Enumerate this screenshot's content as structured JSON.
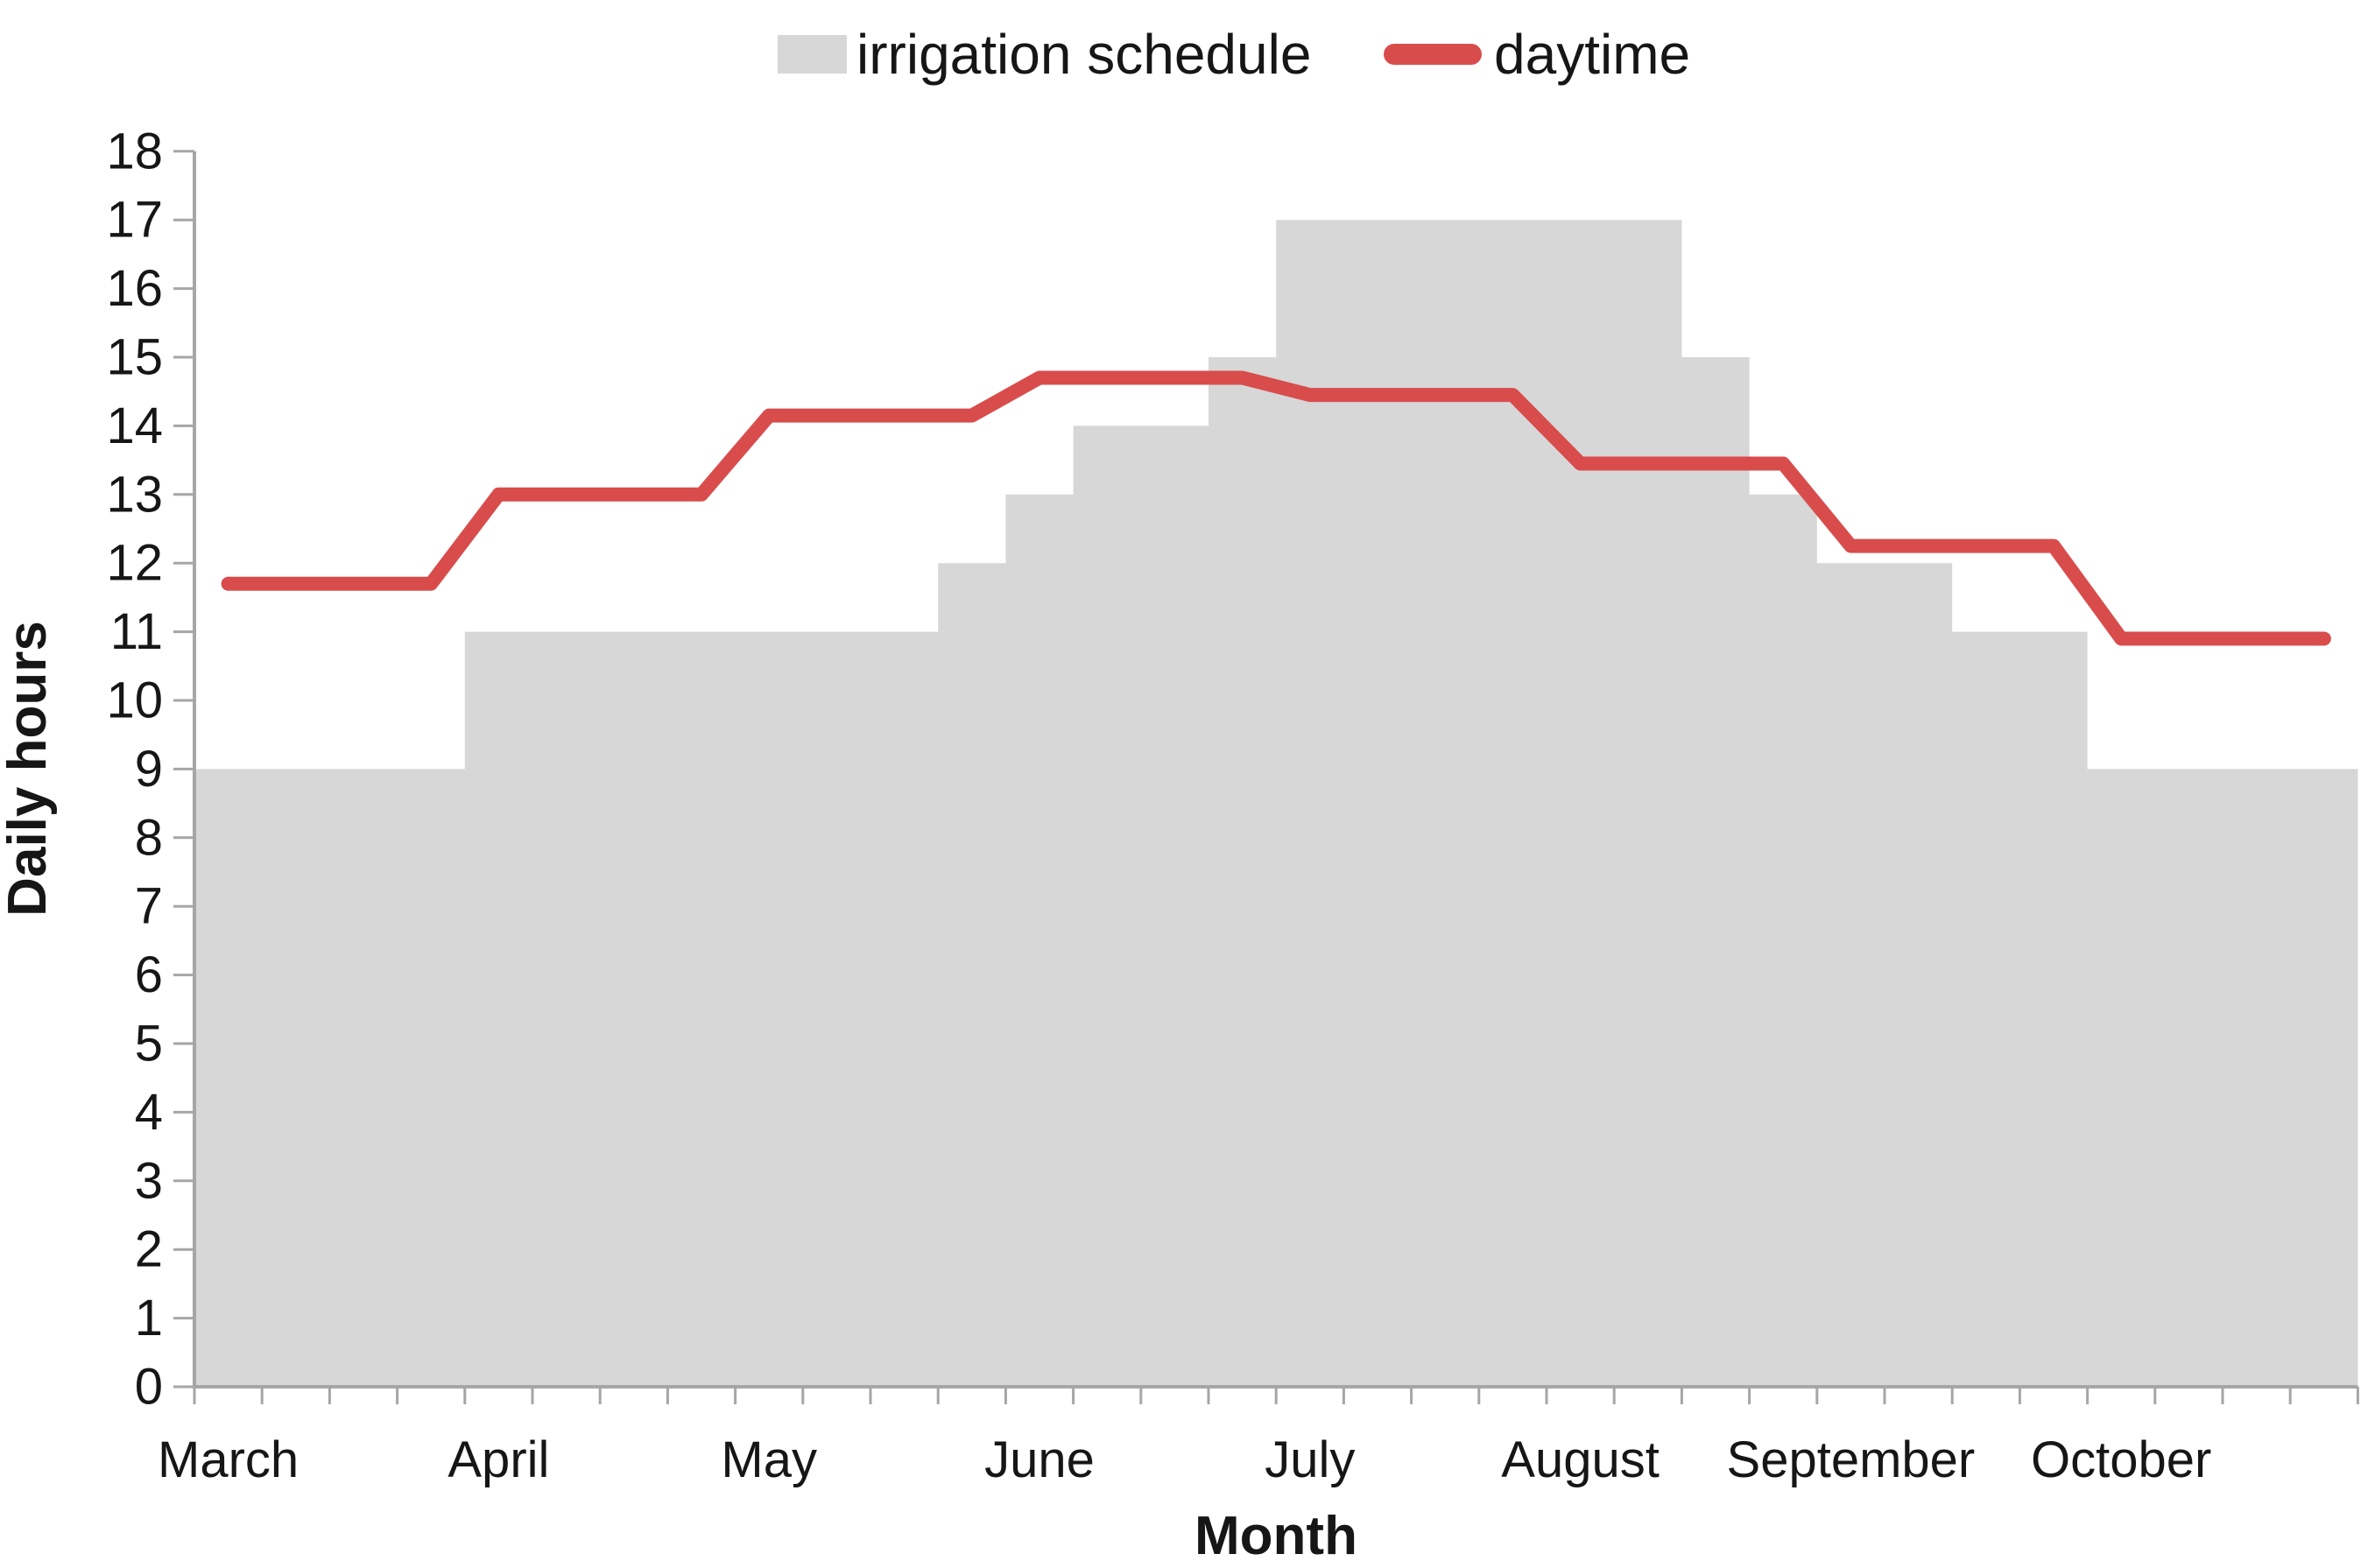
{
  "legend": {
    "position": "top-center",
    "items": [
      {
        "label": "irrigation schedule",
        "marker": "gray-square-swatch",
        "color": "#d7d7d7"
      },
      {
        "label": "daytime",
        "marker": "red-line-swatch",
        "color": "#d94c4c"
      }
    ]
  },
  "axes": {
    "x_title": "Month",
    "y_title": "Daily hours",
    "y_tick_labels": [
      "0",
      "1",
      "2",
      "3",
      "4",
      "5",
      "6",
      "7",
      "8",
      "9",
      "10",
      "11",
      "12",
      "13",
      "14",
      "15",
      "16",
      "17",
      "18"
    ],
    "x_month_labels": [
      "March",
      "April",
      "May",
      "June",
      "July",
      "August",
      "September",
      "October"
    ]
  },
  "colors": {
    "area_fill": "#d7d7d7",
    "line_stroke": "#d94c4c",
    "axis_stroke": "#a6a6a6",
    "text": "#161616"
  },
  "chart_data": {
    "type": "area",
    "subtype": "step-area with overlaid line, weekly columns (4 per month)",
    "title": "",
    "xlabel": "Month",
    "ylabel": "Daily hours",
    "ylim": [
      0,
      18
    ],
    "y_tick_step": 1,
    "grid": "off",
    "legend_position": "top",
    "months": [
      "March",
      "April",
      "May",
      "June",
      "July",
      "August",
      "September",
      "October"
    ],
    "columns_per_month": 4,
    "n_columns": 32,
    "series": [
      {
        "name": "irrigation schedule",
        "type": "step-area",
        "color": "#d7d7d7",
        "values_per_column": [
          9,
          9,
          9,
          9,
          11,
          11,
          11,
          11,
          11,
          11,
          11,
          12,
          13,
          14,
          14,
          15,
          17,
          17,
          17,
          17,
          17,
          17,
          15,
          13,
          12,
          12,
          11,
          11,
          9,
          9,
          9,
          9
        ]
      },
      {
        "name": "daytime",
        "type": "line",
        "color": "#d94c4c",
        "monthly_values": [
          11.7,
          13.0,
          14.15,
          14.7,
          14.45,
          13.45,
          12.25,
          10.9
        ],
        "values_per_column": [
          11.7,
          11.7,
          11.7,
          11.7,
          13.0,
          13.0,
          13.0,
          13.0,
          14.15,
          14.15,
          14.15,
          14.15,
          14.7,
          14.7,
          14.7,
          14.7,
          14.45,
          14.45,
          14.45,
          14.45,
          13.45,
          13.45,
          13.45,
          13.45,
          12.25,
          12.25,
          12.25,
          12.25,
          10.9,
          10.9,
          10.9,
          10.9
        ]
      }
    ]
  }
}
